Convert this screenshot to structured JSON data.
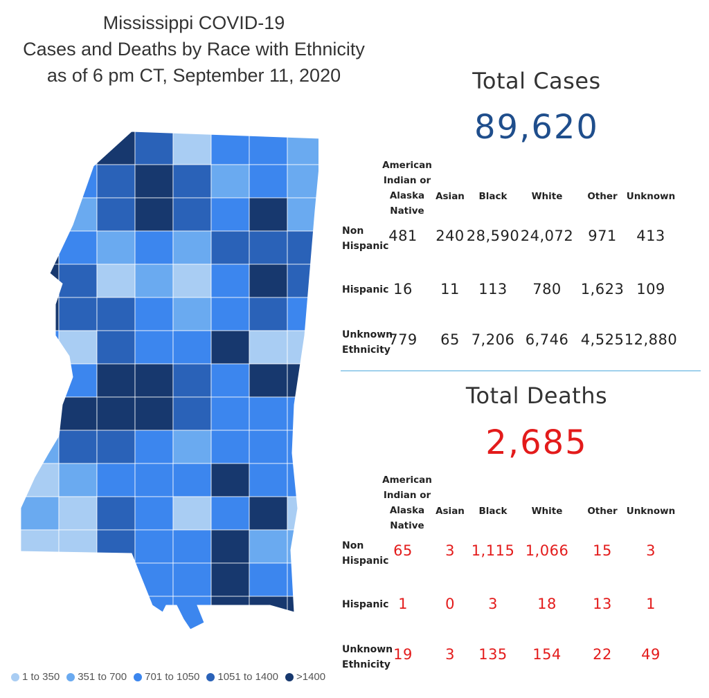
{
  "title": {
    "line1": "Mississippi COVID-19",
    "line2": "Cases and Deaths by Race with Ethnicity",
    "line3": "as of 6 pm CT, September 11, 2020"
  },
  "colors": {
    "bin1": "#a9cdf3",
    "bin2": "#6aaaf0",
    "bin3": "#3c86ee",
    "bin4": "#2a62b8",
    "bin5": "#17386e",
    "cases": "#1f4e8c",
    "deaths": "#e31b1b",
    "divider": "#9fd0ec"
  },
  "legend": [
    {
      "label": "1 to 350",
      "color": "#a9cdf3"
    },
    {
      "label": "351 to 700",
      "color": "#6aaaf0"
    },
    {
      "label": "701 to 1050",
      "color": "#3c86ee"
    },
    {
      "label": "1051 to 1400",
      "color": "#2a62b8"
    },
    {
      "label": ">1400",
      "color": "#17386e"
    }
  ],
  "cases": {
    "heading": "Total Cases",
    "total": "89,620",
    "columns": [
      "American Indian or Alaska Native",
      "Asian",
      "Black",
      "White",
      "Other",
      "Unknown"
    ],
    "rows": [
      {
        "label": "Non Hispanic",
        "values": [
          "481",
          "240",
          "28,590",
          "24,072",
          "971",
          "413"
        ]
      },
      {
        "label": "Hispanic",
        "values": [
          "16",
          "11",
          "113",
          "780",
          "1,623",
          "109"
        ]
      },
      {
        "label": "Unknown Ethnicity",
        "values": [
          "779",
          "65",
          "7,206",
          "6,746",
          "4,525",
          "12,880"
        ]
      }
    ]
  },
  "deaths": {
    "heading": "Total Deaths",
    "total": "2,685",
    "columns": [
      "American Indian or Alaska Native",
      "Asian",
      "Black",
      "White",
      "Other",
      "Unknown"
    ],
    "rows": [
      {
        "label": "Non Hispanic",
        "values": [
          "65",
          "3",
          "1,115",
          "1,066",
          "15",
          "3"
        ]
      },
      {
        "label": "Hispanic",
        "values": [
          "1",
          "0",
          "3",
          "18",
          "13",
          "1"
        ]
      },
      {
        "label": "Unknown Ethnicity",
        "values": [
          "19",
          "3",
          "135",
          "154",
          "22",
          "49"
        ]
      }
    ]
  }
}
